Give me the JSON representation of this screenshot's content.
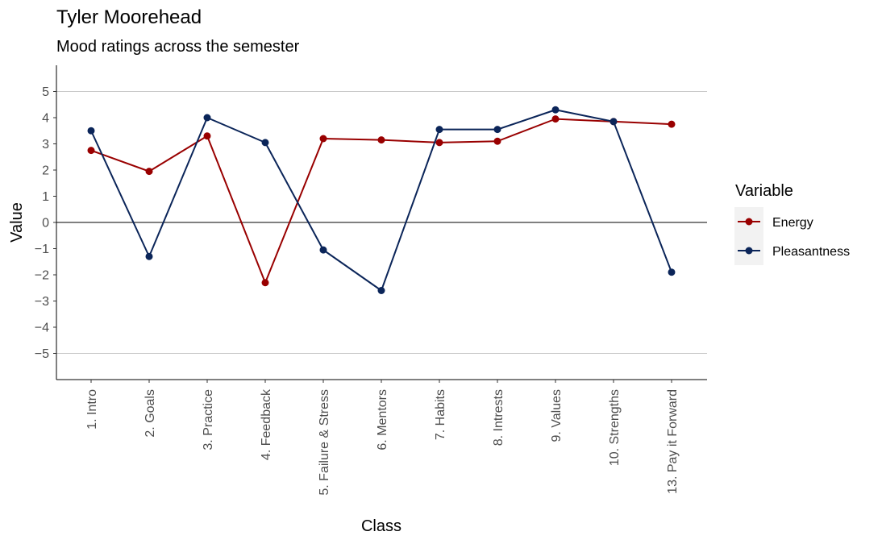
{
  "chart_data": {
    "type": "line",
    "title": "Tyler Moorehead",
    "subtitle": "Mood ratings across the semester",
    "xlabel": "Class",
    "ylabel": "Value",
    "categories": [
      "1. Intro",
      "2. Goals",
      "3. Practice",
      "4. Feedback",
      "5. Failure & Stress",
      "6. Mentors",
      "7. Habits",
      "8. Intrests",
      "9. Values",
      "10. Strengths",
      "13. Pay it Forward"
    ],
    "ylim": [
      -6,
      6
    ],
    "yticks": [
      -5,
      -4,
      -3,
      -2,
      -1,
      0,
      1,
      2,
      3,
      4,
      5
    ],
    "reference_lines": [
      -5,
      0,
      5
    ],
    "legend_title": "Variable",
    "legend_position": "right",
    "series": [
      {
        "name": "Energy",
        "color": "#990000",
        "values": [
          2.75,
          1.95,
          3.3,
          -2.3,
          3.2,
          3.15,
          3.05,
          3.1,
          3.95,
          3.85,
          3.75
        ]
      },
      {
        "name": "Pleasantness",
        "color": "#0b2559",
        "values": [
          3.5,
          -1.3,
          4.0,
          3.05,
          -1.05,
          -2.6,
          3.55,
          3.55,
          4.3,
          3.85,
          -1.9
        ]
      }
    ]
  }
}
